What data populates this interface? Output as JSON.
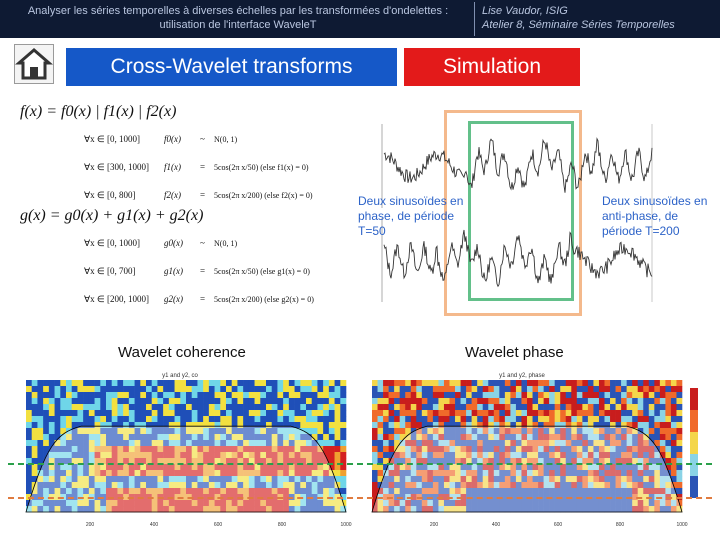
{
  "header": {
    "subtitle_left": "Analyser les séries temporelles à diverses échelles par les transformées d'ondelettes : utilisation de l'interface WaveleT",
    "subtitle_right_line1": "Lise Vaudor, ISIG",
    "subtitle_right_line2": "Atelier 8, Séminaire Séries Temporelles"
  },
  "nav": {
    "home_icon": "home-icon",
    "tab_cross_wavelet": "Cross-Wavelet transforms",
    "tab_simulation": "Simulation"
  },
  "formulas": {
    "f_main": "f(x) = f0(x) | f1(x) | f2(x)",
    "f_rows": [
      [
        "∀x ∈ [0, 1000]",
        "f0(x)",
        "~",
        "N(0, 1)"
      ],
      [
        "∀x ∈ [300, 1000]",
        "f1(x)",
        "=",
        "5cos(2π x/50)   (else f1(x) = 0)"
      ],
      [
        "∀x ∈ [0, 800]",
        "f2(x)",
        "=",
        "5cos(2π x/200)   (else f2(x) = 0)"
      ]
    ],
    "g_main": "g(x) = g0(x) + g1(x) + g2(x)",
    "g_rows": [
      [
        "∀x ∈ [0, 1000]",
        "g0(x)",
        "~",
        "N(0, 1)"
      ],
      [
        "∀x ∈ [0, 700]",
        "g1(x)",
        "=",
        "5cos(2π x/50)   (else g1(x) = 0)"
      ],
      [
        "∀x ∈ [200, 1000]",
        "g2(x)",
        "=",
        "5cos(2π x/200)   (else g2(x) = 0)"
      ]
    ]
  },
  "notes": {
    "in_phase": "Deux sinusoïdes en phase, de période T=50",
    "anti_phase": "Deux sinusoïdes en anti-phase, de période T=200"
  },
  "sections": {
    "coherence": "Wavelet coherence",
    "phase": "Wavelet phase"
  },
  "plots": {
    "coherence_title": "y1 and y2, co",
    "phase_title": "y1 and y2, phase",
    "x_ticks": [
      "200",
      "400",
      "600",
      "800",
      "1000"
    ]
  },
  "colors": {
    "topbar": "#0e1a33",
    "blue_button": "#1558c8",
    "red_button": "#e31a1a",
    "note_text": "#2d63c8",
    "orange_box": "#f4b98c",
    "green_box": "#63c08a"
  }
}
